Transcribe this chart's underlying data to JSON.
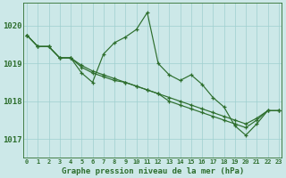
{
  "title": "Graphe pression niveau de la mer (hPa)",
  "x": [
    0,
    1,
    2,
    3,
    4,
    5,
    6,
    7,
    8,
    9,
    10,
    11,
    12,
    13,
    14,
    15,
    16,
    17,
    18,
    19,
    20,
    21,
    22,
    23
  ],
  "line_jagged": [
    1019.75,
    1019.45,
    1019.45,
    1019.15,
    1019.15,
    1018.75,
    1018.5,
    1019.25,
    1019.55,
    1019.7,
    1019.9,
    1020.35,
    1019.0,
    1018.7,
    1018.55,
    1018.7,
    1018.45,
    1018.1,
    1017.85,
    1017.35,
    1017.1,
    1017.4,
    1017.75,
    1017.75
  ],
  "line_smooth1": [
    1019.75,
    1019.45,
    1019.45,
    1019.15,
    1019.15,
    1018.95,
    1018.8,
    1018.7,
    1018.6,
    1018.5,
    1018.4,
    1018.3,
    1018.2,
    1018.1,
    1018.0,
    1017.9,
    1017.8,
    1017.7,
    1017.6,
    1017.5,
    1017.4,
    1017.55,
    1017.75,
    1017.75
  ],
  "line_smooth2": [
    1019.75,
    1019.45,
    1019.45,
    1019.15,
    1019.15,
    1018.9,
    1018.75,
    1018.65,
    1018.55,
    1018.5,
    1018.4,
    1018.3,
    1018.2,
    1018.0,
    1017.9,
    1017.8,
    1017.7,
    1017.6,
    1017.5,
    1017.4,
    1017.3,
    1017.5,
    1017.75,
    1017.75
  ],
  "line_color": "#2d6e2d",
  "bg_color": "#cce8e8",
  "grid_color": "#9fcfcf",
  "ylim": [
    1016.5,
    1020.6
  ],
  "yticks": [
    1017,
    1018,
    1019,
    1020
  ],
  "xlim": [
    -0.3,
    23.3
  ]
}
